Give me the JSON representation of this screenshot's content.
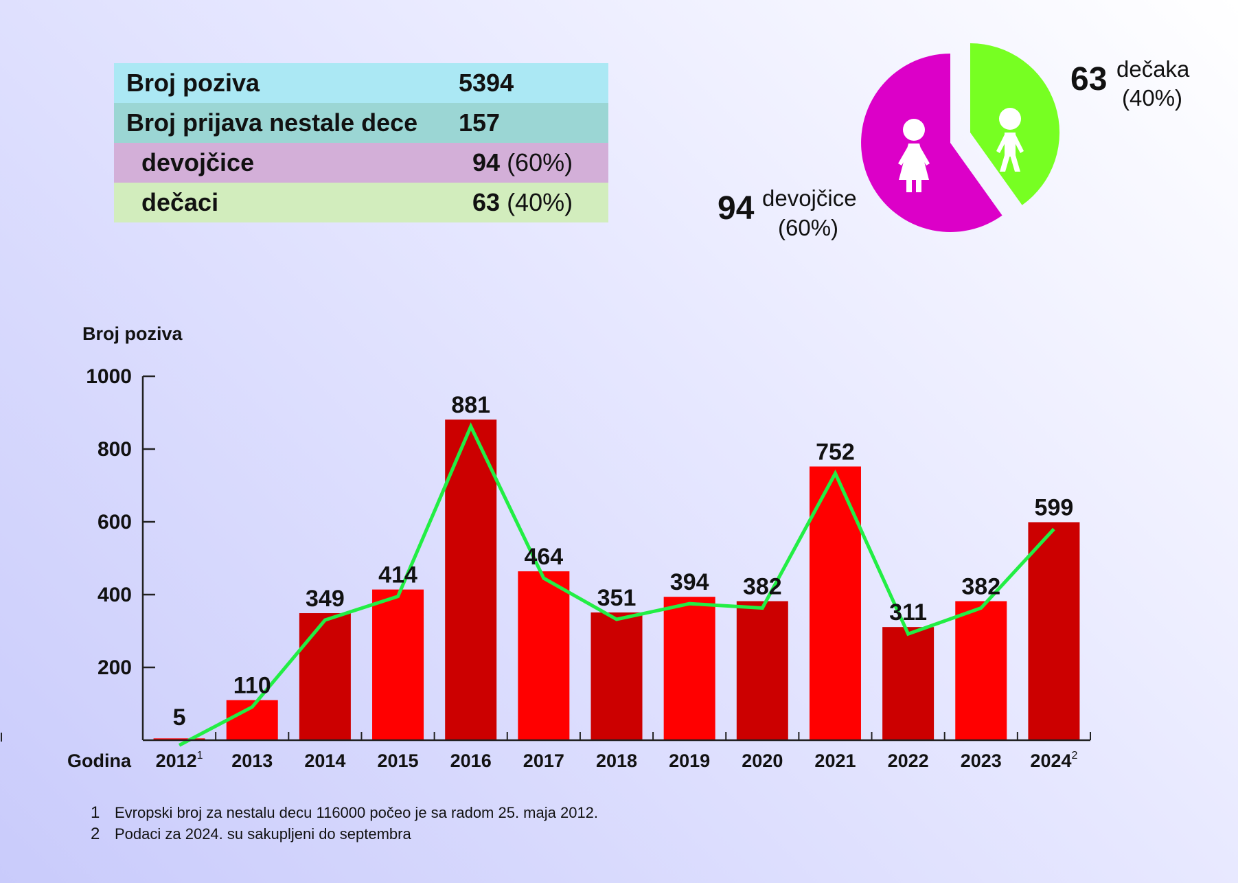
{
  "stats": {
    "rows": [
      {
        "label": "Broj poziva",
        "value": "5394",
        "pct": ""
      },
      {
        "label": "Broj prijava nestale dece",
        "value": "157",
        "pct": ""
      },
      {
        "label": "devojčice",
        "value": "94",
        "pct": "(60%)"
      },
      {
        "label": "dečaci",
        "value": "63",
        "pct": "(40%)"
      }
    ]
  },
  "pie": {
    "girls": {
      "number": "94",
      "label": "devojčice",
      "pct": "(60%)",
      "value": 94,
      "color": "#dc00c8",
      "icon": "girl-icon"
    },
    "boys": {
      "number": "63",
      "label": "dečaka",
      "pct": "(40%)",
      "value": 63,
      "color": "#77ff22",
      "icon": "boy-icon"
    }
  },
  "chart_data": {
    "type": "bar",
    "ylabel": "Broj poziva",
    "xlabel": "Godina",
    "ylim": [
      0,
      1000
    ],
    "yticks": [
      200,
      400,
      600,
      800,
      1000
    ],
    "categories": [
      "2012",
      "2013",
      "2014",
      "2015",
      "2016",
      "2017",
      "2018",
      "2019",
      "2020",
      "2021",
      "2022",
      "2023",
      "2024"
    ],
    "superscripts": [
      "1",
      "",
      "",
      "",
      "",
      "",
      "",
      "",
      "",
      "",
      "",
      "",
      "2"
    ],
    "values": [
      5,
      110,
      349,
      414,
      881,
      464,
      351,
      394,
      382,
      752,
      311,
      382,
      599
    ],
    "bar_colors": [
      "#ff0000",
      "#ff0000",
      "#cc0000",
      "#ff0000",
      "#cc0000",
      "#ff0000",
      "#cc0000",
      "#ff0000",
      "#cc0000",
      "#ff0000",
      "#cc0000",
      "#ff0000",
      "#cc0000"
    ],
    "trend_color": "#22ee44",
    "footnotes": [
      {
        "num": "1",
        "text": "Evropski broj za nestalu decu 116000 počeo je sa radom 25. maja 2012."
      },
      {
        "num": "2",
        "text": "Podaci za 2024. su sakupljeni do septembra"
      }
    ]
  }
}
